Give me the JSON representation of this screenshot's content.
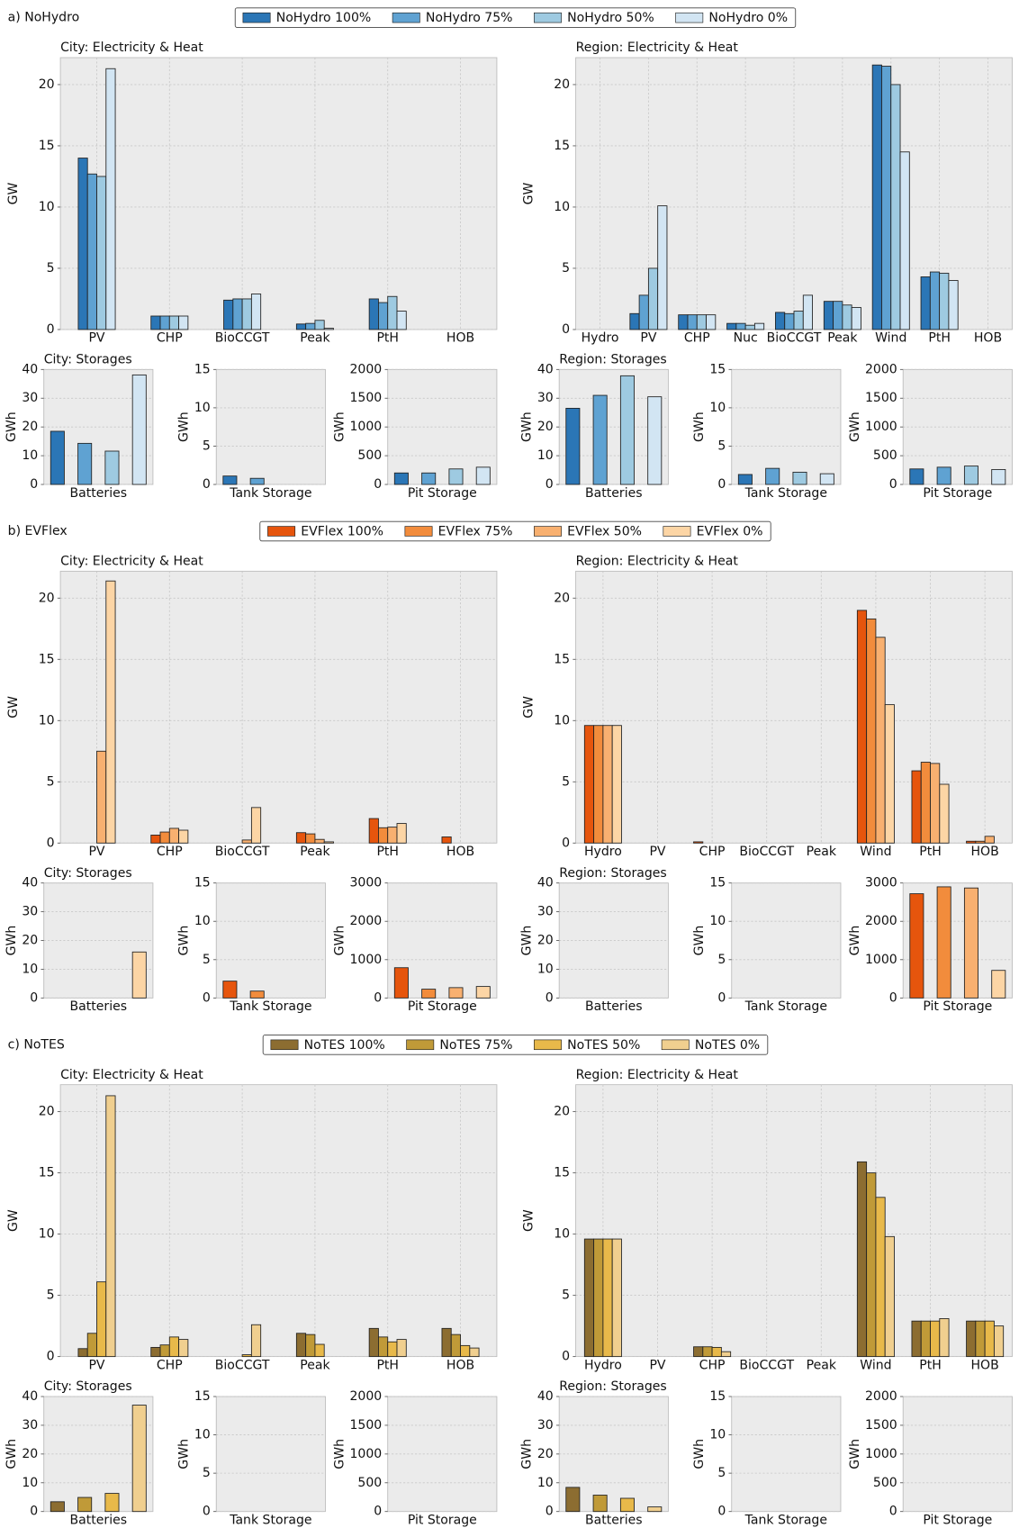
{
  "chart_data": [
    {
      "type": "grouped-bar",
      "title": "a) NoHydro",
      "grid": true,
      "series": [
        {
          "name": "NoHydro 100%",
          "color": "#2b76b6"
        },
        {
          "name": "NoHydro 75%",
          "color": "#5fa2d2"
        },
        {
          "name": "NoHydro 50%",
          "color": "#9ecae1"
        },
        {
          "name": "NoHydro 0%",
          "color": "#d2e5f3"
        }
      ],
      "panels": [
        {
          "title": "City: Electricity & Heat",
          "ylabel": "GW",
          "categories": [
            "PV",
            "CHP",
            "BioCCGT",
            "Peak",
            "PtH",
            "HOB"
          ],
          "values": [
            [
              14.0,
              1.1,
              2.4,
              0.45,
              2.5,
              0
            ],
            [
              12.7,
              1.1,
              2.5,
              0.5,
              2.2,
              0
            ],
            [
              12.5,
              1.1,
              2.5,
              0.75,
              2.7,
              0
            ],
            [
              21.3,
              1.1,
              2.9,
              0.1,
              1.5,
              0
            ]
          ],
          "ylim": [
            0,
            22.2
          ],
          "yticks": [
            0,
            5,
            10,
            15,
            20
          ]
        },
        {
          "title": "Region: Electricity & Heat",
          "ylabel": "GW",
          "categories": [
            "Hydro",
            "PV",
            "CHP",
            "Nuc",
            "BioCCGT",
            "Peak",
            "Wind",
            "PtH",
            "HOB"
          ],
          "values": [
            [
              0,
              1.3,
              1.2,
              0.5,
              1.4,
              2.3,
              21.6,
              4.3,
              0
            ],
            [
              0,
              2.8,
              1.2,
              0.5,
              1.3,
              2.3,
              21.5,
              4.7,
              0
            ],
            [
              0,
              5,
              1.2,
              0.35,
              1.5,
              2.0,
              20.0,
              4.6,
              0
            ],
            [
              0,
              10.1,
              1.2,
              0.5,
              2.8,
              1.8,
              14.5,
              4.0,
              0
            ]
          ],
          "ylim": [
            0,
            22.2
          ],
          "yticks": [
            0,
            5,
            10,
            15,
            20
          ]
        },
        {
          "title": "City: Storages",
          "ylabel": "GWh",
          "categories": [
            "Batteries"
          ],
          "values": [
            [
              18.5
            ],
            [
              14.3
            ],
            [
              11.6
            ],
            [
              38.1
            ]
          ],
          "ylim": [
            0,
            40
          ],
          "yticks": [
            0,
            10,
            20,
            30,
            40
          ]
        },
        {
          "ylabel": "GWh",
          "categories": [
            "Tank Storage"
          ],
          "values": [
            [
              1.1
            ],
            [
              0.8
            ],
            [
              0
            ],
            [
              0
            ]
          ],
          "ylim": [
            0,
            15
          ],
          "yticks": [
            0,
            5,
            10,
            15
          ]
        },
        {
          "ylabel": "GWh",
          "categories": [
            "Pit Storage"
          ],
          "values": [
            [
              200
            ],
            [
              200
            ],
            [
              270
            ],
            [
              300
            ]
          ],
          "ylim": [
            0,
            2000
          ],
          "yticks": [
            0,
            500,
            1000,
            1500,
            2000
          ]
        },
        {
          "title": "Region: Storages",
          "ylabel": "GWh",
          "categories": [
            "Batteries"
          ],
          "values": [
            [
              26.5
            ],
            [
              31
            ],
            [
              37.8
            ],
            [
              30.5
            ]
          ],
          "ylim": [
            0,
            40
          ],
          "yticks": [
            0,
            10,
            20,
            30,
            40
          ]
        },
        {
          "ylabel": "GWh",
          "categories": [
            "Tank Storage"
          ],
          "values": [
            [
              1.3
            ],
            [
              2.1
            ],
            [
              1.6
            ],
            [
              1.4
            ]
          ],
          "ylim": [
            0,
            15
          ],
          "yticks": [
            0,
            5,
            10,
            15
          ]
        },
        {
          "ylabel": "GWh",
          "categories": [
            "Pit Storage"
          ],
          "values": [
            [
              270
            ],
            [
              300
            ],
            [
              320
            ],
            [
              260
            ]
          ],
          "ylim": [
            0,
            2000
          ],
          "yticks": [
            0,
            500,
            1000,
            1500,
            2000
          ]
        }
      ]
    },
    {
      "type": "grouped-bar",
      "title": "b) EVFlex",
      "grid": true,
      "series": [
        {
          "name": "EVFlex 100%",
          "color": "#e6550d"
        },
        {
          "name": "EVFlex 75%",
          "color": "#f28c3c"
        },
        {
          "name": "EVFlex 50%",
          "color": "#f8b070"
        },
        {
          "name": "EVFlex 0%",
          "color": "#fcd5a5"
        }
      ],
      "panels": [
        {
          "title": "City: Electricity & Heat",
          "ylabel": "GW",
          "categories": [
            "PV",
            "CHP",
            "BioCCGT",
            "Peak",
            "PtH",
            "HOB"
          ],
          "values": [
            [
              0,
              0.65,
              0,
              0.85,
              2.0,
              0.5
            ],
            [
              0,
              0.9,
              0,
              0.75,
              1.25,
              0
            ],
            [
              7.5,
              1.2,
              0.25,
              0.3,
              1.3,
              0
            ],
            [
              21.4,
              1.05,
              2.9,
              0.1,
              1.6,
              0
            ]
          ],
          "ylim": [
            0,
            22.2
          ],
          "yticks": [
            0,
            5,
            10,
            15,
            20
          ]
        },
        {
          "title": "Region: Electricity & Heat",
          "ylabel": "GW",
          "categories": [
            "Hydro",
            "PV",
            "CHP",
            "BioCCGT",
            "Peak",
            "Wind",
            "PtH",
            "HOB"
          ],
          "values": [
            [
              9.6,
              0,
              0.1,
              0,
              0,
              19.0,
              5.9,
              0.15
            ],
            [
              9.6,
              0,
              0,
              0,
              0,
              18.3,
              6.6,
              0.15
            ],
            [
              9.6,
              0,
              0,
              0,
              0,
              16.8,
              6.5,
              0.55
            ],
            [
              9.6,
              0,
              0,
              0,
              0,
              11.3,
              4.8,
              0
            ]
          ],
          "ylim": [
            0,
            22.2
          ],
          "yticks": [
            0,
            5,
            10,
            15,
            20
          ]
        },
        {
          "title": "City: Storages",
          "ylabel": "GWh",
          "categories": [
            "Batteries"
          ],
          "values": [
            [
              0
            ],
            [
              0
            ],
            [
              0
            ],
            [
              16.0
            ]
          ],
          "ylim": [
            0,
            40
          ],
          "yticks": [
            0,
            10,
            20,
            30,
            40
          ]
        },
        {
          "ylabel": "GWh",
          "categories": [
            "Tank Storage"
          ],
          "values": [
            [
              2.2
            ],
            [
              0.9
            ],
            [
              0
            ],
            [
              0
            ]
          ],
          "ylim": [
            0,
            15
          ],
          "yticks": [
            0,
            5,
            10,
            15
          ]
        },
        {
          "ylabel": "GWh",
          "categories": [
            "Pit Storage"
          ],
          "values": [
            [
              790
            ],
            [
              230
            ],
            [
              270
            ],
            [
              300
            ]
          ],
          "ylim": [
            0,
            3000
          ],
          "yticks": [
            0,
            1000,
            2000,
            3000
          ]
        },
        {
          "title": "Region: Storages",
          "ylabel": "GWh",
          "categories": [
            "Batteries"
          ],
          "values": [
            [
              0
            ],
            [
              0
            ],
            [
              0
            ],
            [
              0
            ]
          ],
          "ylim": [
            0,
            40
          ],
          "yticks": [
            0,
            10,
            20,
            30,
            40
          ]
        },
        {
          "ylabel": "GWh",
          "categories": [
            "Tank Storage"
          ],
          "values": [
            [
              0
            ],
            [
              0
            ],
            [
              0
            ],
            [
              0
            ]
          ],
          "ylim": [
            0,
            15
          ],
          "yticks": [
            0,
            5,
            10,
            15
          ]
        },
        {
          "ylabel": "GWh",
          "categories": [
            "Pit Storage"
          ],
          "values": [
            [
              2720
            ],
            [
              2900
            ],
            [
              2870
            ],
            [
              720
            ]
          ],
          "ylim": [
            0,
            3000
          ],
          "yticks": [
            0,
            1000,
            2000,
            3000
          ]
        }
      ]
    },
    {
      "type": "grouped-bar",
      "title": "c) NoTES",
      "grid": true,
      "series": [
        {
          "name": "NoTES 100%",
          "color": "#8c6d31"
        },
        {
          "name": "NoTES 75%",
          "color": "#c09a38"
        },
        {
          "name": "NoTES 50%",
          "color": "#e8b94a"
        },
        {
          "name": "NoTES 0%",
          "color": "#f0cf8f"
        }
      ],
      "panels": [
        {
          "title": "City: Electricity & Heat",
          "ylabel": "GW",
          "categories": [
            "PV",
            "CHP",
            "BioCCGT",
            "Peak",
            "PtH",
            "HOB"
          ],
          "values": [
            [
              0.65,
              0.75,
              0,
              1.9,
              2.3,
              2.3
            ],
            [
              1.9,
              0.95,
              0,
              1.8,
              1.6,
              1.8
            ],
            [
              6.1,
              1.6,
              0.15,
              1.0,
              1.2,
              0.9
            ],
            [
              21.3,
              1.4,
              2.6,
              0,
              1.4,
              0.7
            ]
          ],
          "ylim": [
            0,
            22.2
          ],
          "yticks": [
            0,
            5,
            10,
            15,
            20
          ]
        },
        {
          "title": "Region: Electricity & Heat",
          "ylabel": "GW",
          "categories": [
            "Hydro",
            "PV",
            "CHP",
            "BioCCGT",
            "Peak",
            "Wind",
            "PtH",
            "HOB"
          ],
          "values": [
            [
              9.6,
              0,
              0.8,
              0,
              0,
              15.9,
              2.9,
              2.9
            ],
            [
              9.6,
              0,
              0.8,
              0,
              0,
              15.0,
              2.9,
              2.9
            ],
            [
              9.6,
              0,
              0.75,
              0,
              0,
              13.0,
              2.9,
              2.9
            ],
            [
              9.6,
              0,
              0.4,
              0,
              0,
              9.8,
              3.1,
              2.5
            ]
          ],
          "ylim": [
            0,
            22.2
          ],
          "yticks": [
            0,
            5,
            10,
            15,
            20
          ]
        },
        {
          "title": "City: Storages",
          "ylabel": "GWh",
          "categories": [
            "Batteries"
          ],
          "values": [
            [
              3.4
            ],
            [
              4.9
            ],
            [
              6.3
            ],
            [
              37.0
            ]
          ],
          "ylim": [
            0,
            40
          ],
          "yticks": [
            0,
            10,
            20,
            30,
            40
          ]
        },
        {
          "ylabel": "GWh",
          "categories": [
            "Tank Storage"
          ],
          "values": [
            [
              0
            ],
            [
              0
            ],
            [
              0
            ],
            [
              0
            ]
          ],
          "ylim": [
            0,
            15
          ],
          "yticks": [
            0,
            5,
            10,
            15
          ]
        },
        {
          "ylabel": "GWh",
          "categories": [
            "Pit Storage"
          ],
          "values": [
            [
              0
            ],
            [
              0
            ],
            [
              0
            ],
            [
              0
            ]
          ],
          "ylim": [
            0,
            2000
          ],
          "yticks": [
            0,
            500,
            1000,
            1500,
            2000
          ]
        },
        {
          "title": "Region: Storages",
          "ylabel": "GWh",
          "categories": [
            "Batteries"
          ],
          "values": [
            [
              8.4
            ],
            [
              5.7
            ],
            [
              4.6
            ],
            [
              1.6
            ]
          ],
          "ylim": [
            0,
            40
          ],
          "yticks": [
            0,
            10,
            20,
            30,
            40
          ]
        },
        {
          "ylabel": "GWh",
          "categories": [
            "Tank Storage"
          ],
          "values": [
            [
              0
            ],
            [
              0
            ],
            [
              0
            ],
            [
              0
            ]
          ],
          "ylim": [
            0,
            15
          ],
          "yticks": [
            0,
            5,
            10,
            15
          ]
        },
        {
          "ylabel": "GWh",
          "categories": [
            "Pit Storage"
          ],
          "values": [
            [
              0
            ],
            [
              0
            ],
            [
              0
            ],
            [
              0
            ]
          ],
          "ylim": [
            0,
            2000
          ],
          "yticks": [
            0,
            500,
            1000,
            1500,
            2000
          ]
        }
      ]
    }
  ]
}
